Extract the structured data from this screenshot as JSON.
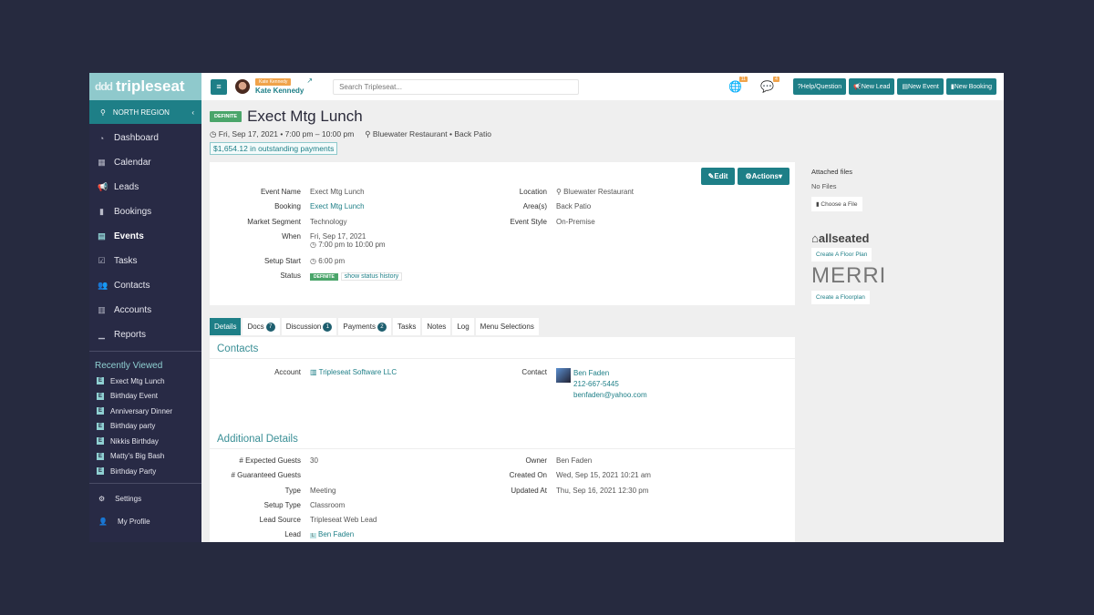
{
  "brand": {
    "name": "tripleseat",
    "accent": "#1e7f87",
    "sidebar_bg": "#282a45"
  },
  "sidebar": {
    "region": "NORTH REGION",
    "items": [
      {
        "label": "Dashboard",
        "icon": "dashboard-icon"
      },
      {
        "label": "Calendar",
        "icon": "calendar-icon"
      },
      {
        "label": "Leads",
        "icon": "megaphone-icon"
      },
      {
        "label": "Bookings",
        "icon": "bookmark-icon"
      },
      {
        "label": "Events",
        "icon": "event-icon",
        "active": true
      },
      {
        "label": "Tasks",
        "icon": "checkbox-icon"
      },
      {
        "label": "Contacts",
        "icon": "users-icon"
      },
      {
        "label": "Accounts",
        "icon": "building-icon"
      },
      {
        "label": "Reports",
        "icon": "chart-icon"
      }
    ],
    "recently_viewed_title": "Recently Viewed",
    "recently_viewed": [
      "Exect Mtg Lunch",
      "Birthday Event",
      "Anniversary Dinner",
      "Birthday party",
      "Nikkis Birthday",
      "Matty's Big Bash",
      "Birthday Party"
    ],
    "bottom": [
      {
        "label": "Settings",
        "icon": "gear-icon"
      },
      {
        "label": "My Profile",
        "icon": "user-icon"
      }
    ]
  },
  "topbar": {
    "user_tag": "Kate Kennedy",
    "user_name": "Kate Kennedy",
    "search_placeholder": "Search Tripleseat...",
    "globe_count": "11",
    "chat_count": "4",
    "buttons": [
      "Help/Question",
      "New Lead",
      "New Event",
      "New Booking"
    ]
  },
  "event": {
    "status": "DEFINITE",
    "title": "Exect Mtg Lunch",
    "datetime": "Fri, Sep 17, 2021 • 7:00 pm – 10:00 pm",
    "location": "Bluewater Restaurant • Back Patio",
    "outstanding": "$1,654.12 in outstanding payments",
    "edit": "Edit",
    "actions": "Actions",
    "left_fields": [
      {
        "label": "Event Name",
        "value": "Exect Mtg Lunch"
      },
      {
        "label": "Booking",
        "value": "Exect Mtg Lunch"
      },
      {
        "label": "Market Segment",
        "value": "Technology"
      },
      {
        "label": "When",
        "value": "Fri, Sep 17, 2021",
        "value2": "7:00 pm to 10:00 pm"
      },
      {
        "label": "Setup Start",
        "value": "6:00 pm"
      },
      {
        "label": "Status",
        "value": "DEFINITE",
        "link": "show status history"
      }
    ],
    "right_fields": [
      {
        "label": "Location",
        "value": "Bluewater Restaurant"
      },
      {
        "label": "Area(s)",
        "value": "Back Patio"
      },
      {
        "label": "Event Style",
        "value": "On-Premise"
      }
    ]
  },
  "tabs": [
    {
      "label": "Details"
    },
    {
      "label": "Docs",
      "count": "7"
    },
    {
      "label": "Discussion",
      "count": "1"
    },
    {
      "label": "Payments",
      "count": "2"
    },
    {
      "label": "Tasks"
    },
    {
      "label": "Notes"
    },
    {
      "label": "Log"
    },
    {
      "label": "Menu Selections"
    }
  ],
  "contacts": {
    "title": "Contacts",
    "account_label": "Account",
    "account": "Tripleseat Software LLC",
    "contact_label": "Contact",
    "contact_name": "Ben Faden",
    "contact_phone": "212-667-5445",
    "contact_email": "benfaden@yahoo.com"
  },
  "additional": {
    "title": "Additional Details",
    "left": [
      {
        "label": "# Expected Guests",
        "value": "30"
      },
      {
        "label": "# Guaranteed Guests",
        "value": ""
      },
      {
        "label": "Type",
        "value": "Meeting"
      },
      {
        "label": "Setup Type",
        "value": "Classroom"
      },
      {
        "label": "Lead Source",
        "value": "Tripleseat Web Lead"
      },
      {
        "label": "Lead",
        "value": "Ben Faden"
      }
    ],
    "right": [
      {
        "label": "Owner",
        "value": "Ben Faden"
      },
      {
        "label": "Created On",
        "value": "Wed, Sep 15, 2021 10:21 am"
      },
      {
        "label": "Updated At",
        "value": "Thu, Sep 16, 2021 12:30 pm"
      }
    ]
  },
  "right_panel": {
    "attached_title": "Attached files",
    "no_files": "No Files",
    "choose_file": "Choose a File",
    "allseated": "allseated",
    "allseated_btn": "Create A Floor Plan",
    "merri": "MERRI",
    "merri_btn": "Create a Floorplan"
  }
}
